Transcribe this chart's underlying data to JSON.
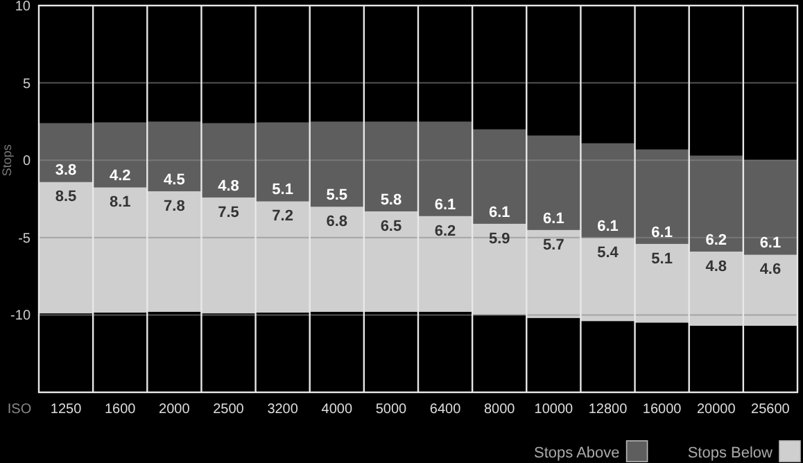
{
  "chart_data": {
    "type": "bar",
    "xlabel": "ISO",
    "ylabel": "Stops",
    "categories": [
      "1250",
      "1600",
      "2000",
      "2500",
      "3200",
      "4000",
      "5000",
      "6400",
      "8000",
      "10000",
      "12800",
      "16000",
      "20000",
      "25600"
    ],
    "series": [
      {
        "name": "Stops Above",
        "color": "#5e5e5e",
        "values": [
          3.8,
          4.2,
          4.5,
          4.8,
          5.1,
          5.5,
          5.8,
          6.1,
          6.1,
          6.1,
          6.1,
          6.1,
          6.2,
          6.1
        ],
        "base": [
          -1.4,
          -1.75,
          -2.0,
          -2.4,
          -2.65,
          -3.0,
          -3.3,
          -3.6,
          -4.1,
          -4.5,
          -5.0,
          -5.4,
          -5.9,
          -6.1
        ]
      },
      {
        "name": "Stops Below",
        "color": "#cfcfcf",
        "values": [
          8.5,
          8.1,
          7.8,
          7.5,
          7.2,
          6.8,
          6.5,
          6.2,
          5.9,
          5.7,
          5.4,
          5.1,
          4.8,
          4.6
        ],
        "base": [
          -9.9,
          -9.85,
          -9.8,
          -9.9,
          -9.85,
          -9.8,
          -9.8,
          -9.8,
          -10.0,
          -10.2,
          -10.4,
          -10.5,
          -10.7,
          -10.7
        ]
      }
    ],
    "ylim": [
      -15,
      10
    ],
    "yticks": [
      10,
      5,
      0,
      -5,
      -10
    ],
    "grid": true,
    "data_labels": true,
    "legend": "bottom right"
  }
}
